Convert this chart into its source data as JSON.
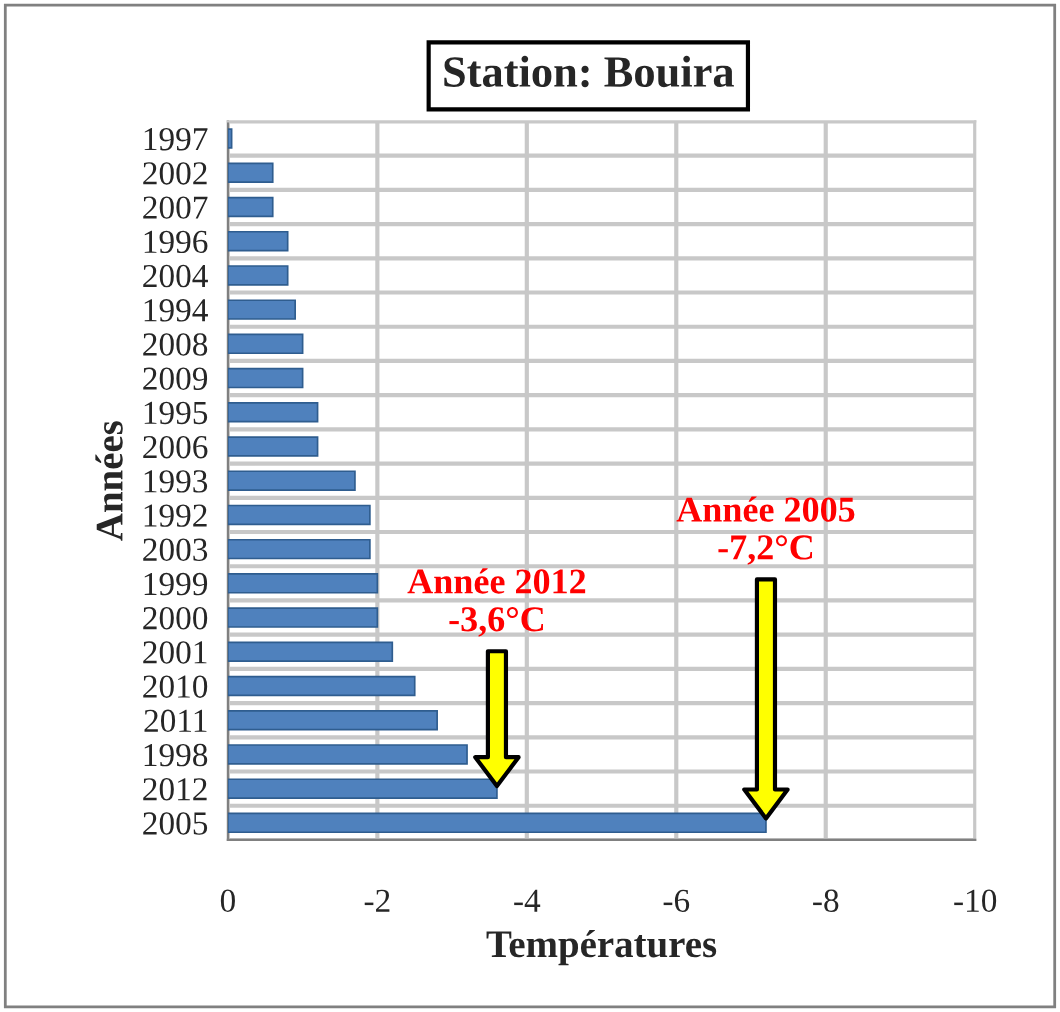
{
  "chart_data": {
    "type": "bar",
    "orientation": "horizontal",
    "title": "Station: Bouira",
    "xlabel": "Températures",
    "ylabel": "Années",
    "categories": [
      "1997",
      "2002",
      "2007",
      "1996",
      "2004",
      "1994",
      "2008",
      "2009",
      "1995",
      "2006",
      "1993",
      "1992",
      "2003",
      "1999",
      "2000",
      "2001",
      "2010",
      "2011",
      "1998",
      "2012",
      "2005"
    ],
    "values": [
      -0.05,
      -0.6,
      -0.6,
      -0.8,
      -0.8,
      -0.9,
      -1.0,
      -1.0,
      -1.2,
      -1.2,
      -1.7,
      -1.9,
      -1.9,
      -2.0,
      -2.0,
      -2.2,
      -2.5,
      -2.8,
      -3.2,
      -3.6,
      -7.2
    ],
    "color": "#4f81bd",
    "xlim": [
      0,
      -10
    ],
    "xticks": [
      0,
      -2,
      -4,
      -6,
      -8,
      -10
    ],
    "grid": true,
    "annotations": [
      "Année 2012\n-3,6°C",
      "Année 2005\n-7,2°C"
    ]
  }
}
